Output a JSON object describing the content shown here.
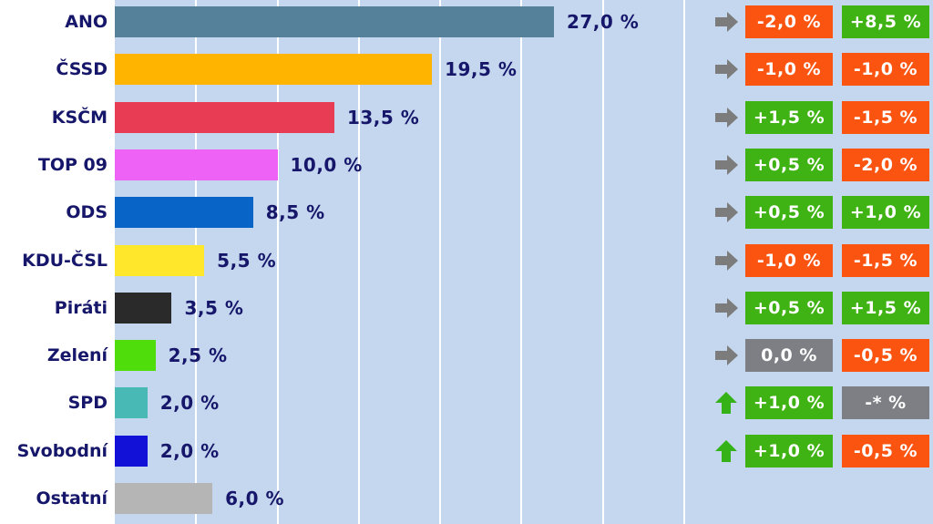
{
  "chart_data": {
    "type": "bar",
    "orientation": "horizontal",
    "xlim": [
      0,
      35
    ],
    "grid": true,
    "categories": [
      "ANO",
      "ČSSD",
      "KSČM",
      "TOP 09",
      "ODS",
      "KDU-ČSL",
      "Piráti",
      "Zelení",
      "SPD",
      "Svobodní",
      "Ostatní"
    ],
    "values": [
      27.0,
      19.5,
      13.5,
      10.0,
      8.5,
      5.5,
      3.5,
      2.5,
      2.0,
      2.0,
      6.0
    ],
    "value_labels": [
      "27,0 %",
      "19,5 %",
      "13,5 %",
      "10,0 %",
      "8,5 %",
      "5,5 %",
      "3,5 %",
      "2,5 %",
      "2,0 %",
      "2,0 %",
      "6,0 %"
    ],
    "bar_colors": [
      "#56819b",
      "#ffb400",
      "#e83c55",
      "#ee63f6",
      "#0964c7",
      "#ffe72c",
      "#2a2a2a",
      "#4fdd0c",
      "#49b9b6",
      "#1111d8",
      "#b5b5b5"
    ],
    "trend_arrows": [
      "right",
      "right",
      "right",
      "right",
      "right",
      "right",
      "right",
      "right",
      "up",
      "up",
      null
    ],
    "change_1": [
      "-2,0 %",
      "-1,0 %",
      "+1,5 %",
      "+0,5 %",
      "+0,5 %",
      "-1,0 %",
      "+0,5 %",
      "0,0 %",
      "+1,0 %",
      "+1,0 %"
    ],
    "change_1_values": [
      -2.0,
      -1.0,
      1.5,
      0.5,
      0.5,
      -1.0,
      0.5,
      0.0,
      1.0,
      1.0
    ],
    "change_2": [
      "+8,5 %",
      "-1,0 %",
      "-1,5 %",
      "-2,0 %",
      "+1,0 %",
      "-1,5 %",
      "+1,5 %",
      "-0,5 %",
      "-* %",
      "-0,5 %"
    ],
    "change_2_values": [
      8.5,
      -1.0,
      -1.5,
      -2.0,
      1.0,
      -1.5,
      1.5,
      -0.5,
      null,
      -0.5
    ]
  },
  "colors": {
    "positive": "#3fb313",
    "negative": "#fb5411",
    "neutral": "#7e7f84",
    "arrow_right": "#7c7c7c",
    "arrow_up": "#35b217",
    "plot_bg": "#c5d7ee",
    "text": "#16166a"
  }
}
